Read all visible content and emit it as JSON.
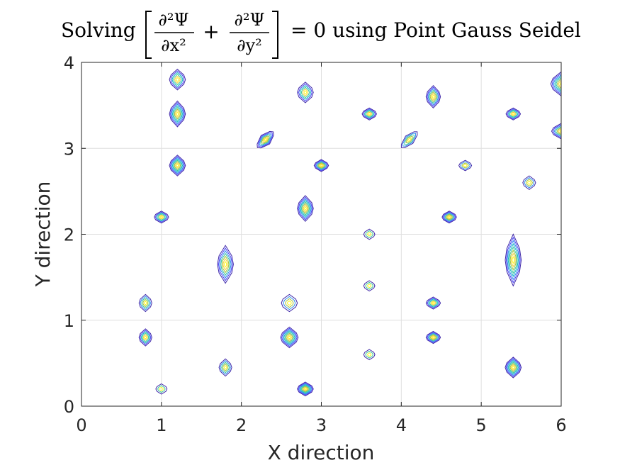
{
  "chart_data": {
    "type": "contour",
    "title": {
      "prefix": "Solving",
      "term1_num": "∂²Ψ",
      "term1_den": "∂x²",
      "op": "+",
      "term2_num": "∂²Ψ",
      "term2_den": "∂y²",
      "suffix": "= 0 using Point Gauss Seidel"
    },
    "xlabel": "X direction",
    "ylabel": "Y direction",
    "xlim": [
      0,
      6
    ],
    "ylim": [
      0,
      4
    ],
    "xticks": [
      "0",
      "1",
      "2",
      "3",
      "4",
      "5",
      "6"
    ],
    "yticks": [
      "0",
      "1",
      "2",
      "3",
      "4"
    ],
    "grid": true,
    "colormap": [
      "#3e26a8",
      "#4743f6",
      "#2d8bf0",
      "#0fb8c0",
      "#3cc69c",
      "#a6c33a",
      "#f7d13d",
      "#fcf820"
    ],
    "peaks": [
      {
        "x": 1.2,
        "y": 3.8,
        "sx": 0.1,
        "sy": 0.12,
        "levels": 6
      },
      {
        "x": 1.2,
        "y": 3.4,
        "sx": 0.1,
        "sy": 0.15,
        "levels": 8
      },
      {
        "x": 1.2,
        "y": 2.8,
        "sx": 0.1,
        "sy": 0.12,
        "levels": 8
      },
      {
        "x": 1.0,
        "y": 2.2,
        "sx": 0.09,
        "sy": 0.07,
        "levels": 6
      },
      {
        "x": 2.3,
        "y": 3.1,
        "sx": 0.14,
        "sy": 0.07,
        "levels": 7,
        "rot": -45
      },
      {
        "x": 2.8,
        "y": 3.65,
        "sx": 0.1,
        "sy": 0.12,
        "levels": 6
      },
      {
        "x": 3.0,
        "y": 2.8,
        "sx": 0.09,
        "sy": 0.07,
        "levels": 7
      },
      {
        "x": 2.8,
        "y": 2.3,
        "sx": 0.1,
        "sy": 0.15,
        "levels": 8
      },
      {
        "x": 3.6,
        "y": 3.4,
        "sx": 0.09,
        "sy": 0.07,
        "levels": 6
      },
      {
        "x": 4.1,
        "y": 3.1,
        "sx": 0.14,
        "sy": 0.06,
        "levels": 5,
        "rot": -45
      },
      {
        "x": 4.4,
        "y": 3.6,
        "sx": 0.09,
        "sy": 0.13,
        "levels": 7
      },
      {
        "x": 4.8,
        "y": 2.8,
        "sx": 0.08,
        "sy": 0.06,
        "levels": 4
      },
      {
        "x": 5.4,
        "y": 3.4,
        "sx": 0.09,
        "sy": 0.07,
        "levels": 6
      },
      {
        "x": 6.0,
        "y": 3.75,
        "sx": 0.13,
        "sy": 0.14,
        "levels": 8
      },
      {
        "x": 6.0,
        "y": 3.2,
        "sx": 0.12,
        "sy": 0.09,
        "levels": 7
      },
      {
        "x": 5.6,
        "y": 2.6,
        "sx": 0.08,
        "sy": 0.08,
        "levels": 4
      },
      {
        "x": 4.6,
        "y": 2.2,
        "sx": 0.09,
        "sy": 0.07,
        "levels": 7
      },
      {
        "x": 5.4,
        "y": 1.7,
        "sx": 0.1,
        "sy": 0.3,
        "levels": 8
      },
      {
        "x": 4.4,
        "y": 1.2,
        "sx": 0.09,
        "sy": 0.07,
        "levels": 6
      },
      {
        "x": 4.4,
        "y": 0.8,
        "sx": 0.09,
        "sy": 0.07,
        "levels": 7
      },
      {
        "x": 5.4,
        "y": 0.45,
        "sx": 0.1,
        "sy": 0.12,
        "levels": 8
      },
      {
        "x": 3.6,
        "y": 2.0,
        "sx": 0.07,
        "sy": 0.06,
        "levels": 3
      },
      {
        "x": 3.6,
        "y": 1.4,
        "sx": 0.07,
        "sy": 0.06,
        "levels": 3
      },
      {
        "x": 3.6,
        "y": 0.6,
        "sx": 0.07,
        "sy": 0.06,
        "levels": 3
      },
      {
        "x": 1.8,
        "y": 1.65,
        "sx": 0.1,
        "sy": 0.22,
        "levels": 7
      },
      {
        "x": 1.8,
        "y": 0.45,
        "sx": 0.08,
        "sy": 0.1,
        "levels": 5
      },
      {
        "x": 2.6,
        "y": 1.2,
        "sx": 0.1,
        "sy": 0.1,
        "levels": 4
      },
      {
        "x": 2.6,
        "y": 0.8,
        "sx": 0.11,
        "sy": 0.12,
        "levels": 8
      },
      {
        "x": 2.8,
        "y": 0.2,
        "sx": 0.1,
        "sy": 0.08,
        "levels": 8
      },
      {
        "x": 0.8,
        "y": 1.2,
        "sx": 0.08,
        "sy": 0.1,
        "levels": 5
      },
      {
        "x": 0.8,
        "y": 0.8,
        "sx": 0.08,
        "sy": 0.1,
        "levels": 6
      },
      {
        "x": 1.0,
        "y": 0.2,
        "sx": 0.07,
        "sy": 0.06,
        "levels": 3
      }
    ]
  }
}
